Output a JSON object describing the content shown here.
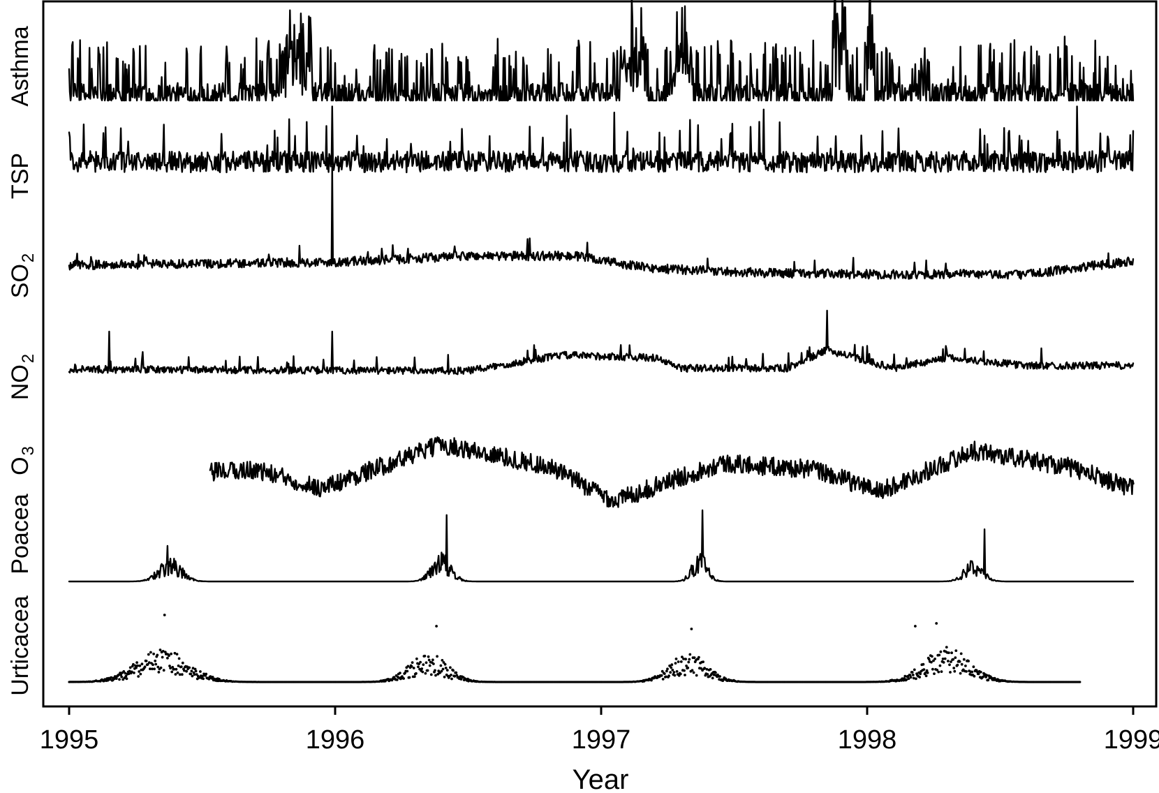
{
  "chart_data": {
    "type": "line",
    "xlabel": "Year",
    "xlim": [
      1995,
      1999
    ],
    "x_ticks": [
      "1995",
      "1996",
      "1997",
      "1998",
      "1999"
    ],
    "grid": false,
    "legend": "none",
    "series": [
      {
        "name": "Asthma",
        "label_main": "Asthma",
        "label_sub": "",
        "display": "line",
        "start": 1995.0,
        "end": 1999.0,
        "baseline": 0.1,
        "noise": 0.45,
        "spike_rate": 0.16,
        "spike_height": 0.9,
        "bursts": [
          {
            "center": 1995.85,
            "width": 0.06,
            "amp": 1.4
          },
          {
            "center": 1997.12,
            "width": 0.05,
            "amp": 0.9
          },
          {
            "center": 1997.3,
            "width": 0.04,
            "amp": 0.9
          },
          {
            "center": 1997.9,
            "width": 0.03,
            "amp": 2.0
          },
          {
            "center": 1998.01,
            "width": 0.02,
            "amp": 1.8
          }
        ],
        "peaks": [
          {
            "x": 1997.88,
            "value": 2.4
          },
          {
            "x": 1998.01,
            "value": 2.2
          },
          {
            "x": 1995.87,
            "value": 1.6
          }
        ]
      },
      {
        "name": "TSP",
        "label_main": "TSP",
        "label_sub": "",
        "display": "line",
        "start": 1995.0,
        "end": 1999.0,
        "baseline": 0.55,
        "noise": 0.35,
        "spike_rate": 0.05,
        "spike_height": 0.6,
        "bursts": [],
        "peaks": [
          {
            "x": 1995.99,
            "value": 1.45
          },
          {
            "x": 1996.87,
            "value": 1.3
          },
          {
            "x": 1997.05,
            "value": 1.35
          },
          {
            "x": 1997.61,
            "value": 1.4
          },
          {
            "x": 1998.79,
            "value": 1.45
          }
        ]
      },
      {
        "name": "SO2",
        "label_main": "SO",
        "label_sub": "2",
        "display": "line",
        "start": 1995.0,
        "end": 1999.0,
        "baseline": 0.3,
        "noise": 0.12,
        "spike_rate": 0.02,
        "spike_height": 0.2,
        "trend": [
          {
            "x": 1995.0,
            "value": 0.32
          },
          {
            "x": 1996.0,
            "value": 0.36
          },
          {
            "x": 1996.5,
            "value": 0.44
          },
          {
            "x": 1996.9,
            "value": 0.44
          },
          {
            "x": 1997.18,
            "value": 0.28
          },
          {
            "x": 1997.6,
            "value": 0.22
          },
          {
            "x": 1998.0,
            "value": 0.2
          },
          {
            "x": 1998.6,
            "value": 0.2
          },
          {
            "x": 1999.0,
            "value": 0.38
          }
        ],
        "peaks": [
          {
            "x": 1995.99,
            "value": 1.6
          }
        ]
      },
      {
        "name": "NO2",
        "label_main": "NO",
        "label_sub": "2",
        "display": "line",
        "start": 1995.0,
        "end": 1999.0,
        "baseline": 0.3,
        "noise": 0.14,
        "spike_rate": 0.03,
        "spike_height": 0.3,
        "trend": [
          {
            "x": 1995.0,
            "value": 0.28
          },
          {
            "x": 1996.5,
            "value": 0.25
          },
          {
            "x": 1996.85,
            "value": 0.55
          },
          {
            "x": 1997.2,
            "value": 0.5
          },
          {
            "x": 1997.3,
            "value": 0.3
          },
          {
            "x": 1997.7,
            "value": 0.3
          },
          {
            "x": 1997.85,
            "value": 0.65
          },
          {
            "x": 1998.1,
            "value": 0.3
          },
          {
            "x": 1998.3,
            "value": 0.5
          },
          {
            "x": 1998.6,
            "value": 0.35
          },
          {
            "x": 1999.0,
            "value": 0.35
          }
        ],
        "peaks": [
          {
            "x": 1995.15,
            "value": 1.0
          },
          {
            "x": 1995.99,
            "value": 1.0
          },
          {
            "x": 1997.85,
            "value": 1.4
          }
        ]
      },
      {
        "name": "O3",
        "label_main": "O",
        "label_sub": "3",
        "display": "line",
        "start": 1995.53,
        "end": 1999.0,
        "baseline": 0.5,
        "noise": 0.3,
        "spike_rate": 0.0,
        "spike_height": 0.0,
        "trend": [
          {
            "x": 1995.53,
            "value": 0.7
          },
          {
            "x": 1995.7,
            "value": 0.75
          },
          {
            "x": 1995.95,
            "value": 0.45
          },
          {
            "x": 1996.4,
            "value": 1.15
          },
          {
            "x": 1996.8,
            "value": 0.8
          },
          {
            "x": 1997.05,
            "value": 0.25
          },
          {
            "x": 1997.45,
            "value": 0.85
          },
          {
            "x": 1997.8,
            "value": 0.75
          },
          {
            "x": 1998.05,
            "value": 0.4
          },
          {
            "x": 1998.4,
            "value": 1.05
          },
          {
            "x": 1998.75,
            "value": 0.8
          },
          {
            "x": 1999.0,
            "value": 0.45
          }
        ],
        "peaks": []
      },
      {
        "name": "Poacea",
        "label_main": "Poacea",
        "label_sub": "",
        "display": "line",
        "start": 1995.0,
        "end": 1999.0,
        "baseline": 0.0,
        "noise": 0.0,
        "spike_rate": 0.0,
        "spike_height": 0.0,
        "seasons": [
          {
            "center": 1995.38,
            "width": 0.06,
            "amp": 0.4
          },
          {
            "center": 1996.4,
            "width": 0.05,
            "amp": 0.5
          },
          {
            "center": 1997.37,
            "width": 0.04,
            "amp": 0.5
          },
          {
            "center": 1998.4,
            "width": 0.05,
            "amp": 0.35
          }
        ],
        "peaks": [
          {
            "x": 1996.42,
            "value": 1.4
          },
          {
            "x": 1997.38,
            "value": 1.5
          },
          {
            "x": 1998.44,
            "value": 1.1
          },
          {
            "x": 1995.37,
            "value": 0.75
          }
        ]
      },
      {
        "name": "Urticacea",
        "label_main": "Urticacea",
        "label_sub": "",
        "display": "points",
        "start": 1995.0,
        "end": 1998.8,
        "baseline": 0.0,
        "noise": 0.0,
        "spike_rate": 0.0,
        "spike_height": 0.0,
        "seasons": [
          {
            "center": 1995.35,
            "width": 0.14,
            "amp": 0.45
          },
          {
            "center": 1996.35,
            "width": 0.1,
            "amp": 0.4
          },
          {
            "center": 1997.33,
            "width": 0.1,
            "amp": 0.4
          },
          {
            "center": 1998.3,
            "width": 0.12,
            "amp": 0.5
          }
        ],
        "peaks": [
          {
            "x": 1995.36,
            "value": 1.2
          },
          {
            "x": 1996.38,
            "value": 1.0
          },
          {
            "x": 1997.34,
            "value": 0.95
          },
          {
            "x": 1998.18,
            "value": 1.0
          },
          {
            "x": 1998.26,
            "value": 1.05
          }
        ]
      }
    ]
  }
}
